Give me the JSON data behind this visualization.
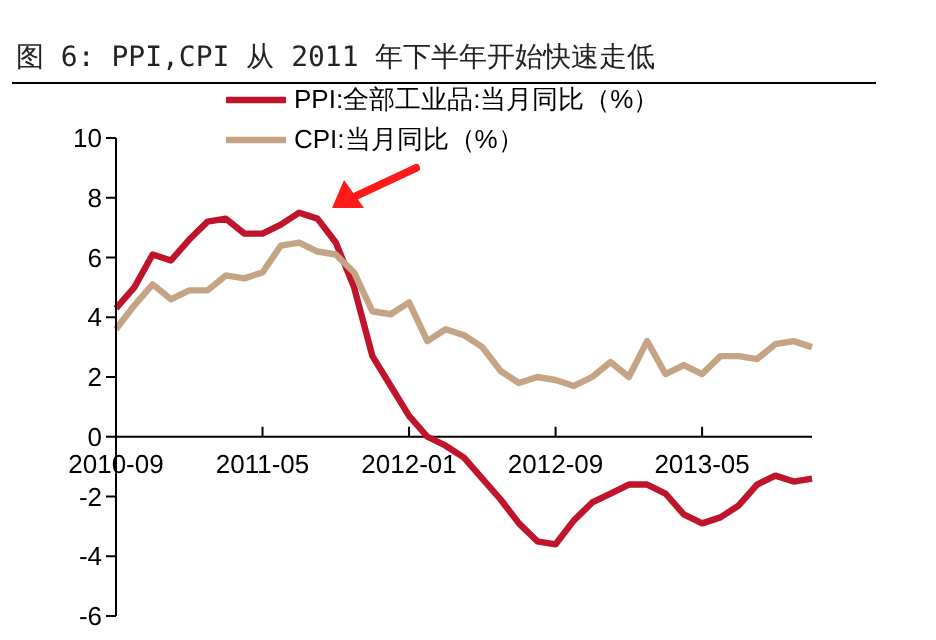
{
  "chart_data": {
    "type": "line",
    "title": "图 6: PPI,CPI 从 2011 年下半年开始快速走低",
    "categories": [
      "2010-09",
      null,
      null,
      null,
      null,
      null,
      null,
      null,
      "2011-05",
      null,
      null,
      null,
      null,
      null,
      null,
      null,
      "2012-01",
      null,
      null,
      null,
      null,
      null,
      null,
      null,
      "2012-09",
      null,
      null,
      null,
      null,
      null,
      null,
      null,
      "2013-05",
      null,
      null,
      null,
      null,
      null,
      null
    ],
    "series": [
      {
        "name": "PPI:全部工业品:当月同比（%）",
        "color": "#c0142a",
        "values": [
          4.3,
          5.0,
          6.1,
          5.9,
          6.6,
          7.2,
          7.3,
          6.8,
          6.8,
          7.1,
          7.5,
          7.3,
          6.5,
          5.0,
          2.7,
          1.7,
          0.7,
          0.0,
          -0.3,
          -0.7,
          -1.4,
          -2.1,
          -2.9,
          -3.5,
          -3.6,
          -2.8,
          -2.2,
          -1.9,
          -1.6,
          -1.6,
          -1.9,
          -2.6,
          -2.9,
          -2.7,
          -2.3,
          -1.6,
          -1.3,
          -1.5,
          -1.4
        ]
      },
      {
        "name": "CPI:当月同比（%）",
        "color": "#c4a484",
        "values": [
          3.6,
          4.4,
          5.1,
          4.6,
          4.9,
          4.9,
          5.4,
          5.3,
          5.5,
          6.4,
          6.5,
          6.2,
          6.1,
          5.5,
          4.2,
          4.1,
          4.5,
          3.2,
          3.6,
          3.4,
          3.0,
          2.2,
          1.8,
          2.0,
          1.9,
          1.7,
          2.0,
          2.5,
          2.0,
          3.2,
          2.1,
          2.4,
          2.1,
          2.7,
          2.7,
          2.6,
          3.1,
          3.2,
          3.0
        ]
      }
    ],
    "ylim": [
      -6,
      10
    ],
    "yticks": [
      -6,
      -4,
      -2,
      0,
      2,
      4,
      6,
      8,
      10
    ],
    "grid": false,
    "legend": "top",
    "marker": "none",
    "line_style": "solid"
  }
}
